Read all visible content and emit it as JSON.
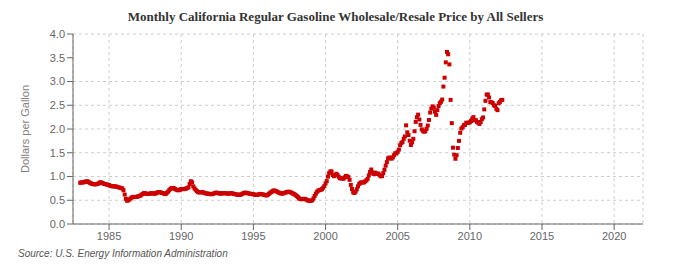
{
  "chart_data": {
    "type": "scatter",
    "title": "Monthly California Regular Gasoline Wholesale/Resale Price by All Sellers",
    "ylabel": "Dollars per Gallon",
    "annotations": [
      "Source: U.S. Energy Information Administration"
    ],
    "color": "#cc0000",
    "marker": "square",
    "grid": true,
    "xlim": [
      1982.5,
      2022.0
    ],
    "ylim": [
      0.0,
      4.0
    ],
    "xticks": [
      1985,
      1990,
      1995,
      2000,
      2005,
      2010,
      2015,
      2020
    ],
    "yticks": [
      {
        "value": 0.0,
        "label": "0.0"
      },
      0.5,
      {
        "value": 1.0,
        "label": "1.0"
      },
      1.5,
      {
        "value": 2.0,
        "label": "2.0"
      },
      2.5,
      {
        "value": 3.0,
        "label": "3.0"
      },
      3.5,
      {
        "value": 4.0,
        "label": "4.0"
      }
    ],
    "x": [
      1983.0,
      1983.083,
      1983.167,
      1983.25,
      1983.333,
      1983.417,
      1983.5,
      1983.583,
      1983.667,
      1983.75,
      1983.833,
      1983.917,
      1984.0,
      1984.083,
      1984.167,
      1984.25,
      1984.333,
      1984.417,
      1984.5,
      1984.583,
      1984.667,
      1984.75,
      1984.833,
      1984.917,
      1985.0,
      1985.083,
      1985.167,
      1985.25,
      1985.333,
      1985.417,
      1985.5,
      1985.583,
      1985.667,
      1985.75,
      1985.833,
      1985.917,
      1986.0,
      1986.083,
      1986.167,
      1986.25,
      1986.333,
      1986.417,
      1986.5,
      1986.583,
      1986.667,
      1986.75,
      1986.833,
      1986.917,
      1987.0,
      1987.083,
      1987.167,
      1987.25,
      1987.333,
      1987.417,
      1987.5,
      1987.583,
      1987.667,
      1987.75,
      1987.833,
      1987.917,
      1988.0,
      1988.083,
      1988.167,
      1988.25,
      1988.333,
      1988.417,
      1988.5,
      1988.583,
      1988.667,
      1988.75,
      1988.833,
      1988.917,
      1989.0,
      1989.083,
      1989.167,
      1989.25,
      1989.333,
      1989.417,
      1989.5,
      1989.583,
      1989.667,
      1989.75,
      1989.833,
      1989.917,
      1990.0,
      1990.083,
      1990.167,
      1990.25,
      1990.333,
      1990.417,
      1990.5,
      1990.583,
      1990.667,
      1990.75,
      1990.833,
      1990.917,
      1991.0,
      1991.083,
      1991.167,
      1991.25,
      1991.333,
      1991.417,
      1991.5,
      1991.583,
      1991.667,
      1991.75,
      1991.833,
      1991.917,
      1992.0,
      1992.083,
      1992.167,
      1992.25,
      1992.333,
      1992.417,
      1992.5,
      1992.583,
      1992.667,
      1992.75,
      1992.833,
      1992.917,
      1993.0,
      1993.083,
      1993.167,
      1993.25,
      1993.333,
      1993.417,
      1993.5,
      1993.583,
      1993.667,
      1993.75,
      1993.833,
      1993.917,
      1994.0,
      1994.083,
      1994.167,
      1994.25,
      1994.333,
      1994.417,
      1994.5,
      1994.583,
      1994.667,
      1994.75,
      1994.833,
      1994.917,
      1995.0,
      1995.083,
      1995.167,
      1995.25,
      1995.333,
      1995.417,
      1995.5,
      1995.583,
      1995.667,
      1995.75,
      1995.833,
      1995.917,
      1996.0,
      1996.083,
      1996.167,
      1996.25,
      1996.333,
      1996.417,
      1996.5,
      1996.583,
      1996.667,
      1996.75,
      1996.833,
      1996.917,
      1997.0,
      1997.083,
      1997.167,
      1997.25,
      1997.333,
      1997.417,
      1997.5,
      1997.583,
      1997.667,
      1997.75,
      1997.833,
      1997.917,
      1998.0,
      1998.083,
      1998.167,
      1998.25,
      1998.333,
      1998.417,
      1998.5,
      1998.583,
      1998.667,
      1998.75,
      1998.833,
      1998.917,
      1999.0,
      1999.083,
      1999.167,
      1999.25,
      1999.333,
      1999.417,
      1999.5,
      1999.583,
      1999.667,
      1999.75,
      1999.833,
      1999.917,
      2000.0,
      2000.083,
      2000.167,
      2000.25,
      2000.333,
      2000.417,
      2000.5,
      2000.583,
      2000.667,
      2000.75,
      2000.833,
      2000.917,
      2001.0,
      2001.083,
      2001.167,
      2001.25,
      2001.333,
      2001.417,
      2001.5,
      2001.583,
      2001.667,
      2001.75,
      2001.833,
      2001.917,
      2002.0,
      2002.083,
      2002.167,
      2002.25,
      2002.333,
      2002.417,
      2002.5,
      2002.583,
      2002.667,
      2002.75,
      2002.833,
      2002.917,
      2003.0,
      2003.083,
      2003.167,
      2003.25,
      2003.333,
      2003.417,
      2003.5,
      2003.583,
      2003.667,
      2003.75,
      2003.833,
      2003.917,
      2004.0,
      2004.083,
      2004.167,
      2004.25,
      2004.333,
      2004.417,
      2004.5,
      2004.583,
      2004.667,
      2004.75,
      2004.833,
      2004.917,
      2005.0,
      2005.083,
      2005.167,
      2005.25,
      2005.333,
      2005.417,
      2005.5,
      2005.583,
      2005.667,
      2005.75,
      2005.833,
      2005.917,
      2006.0,
      2006.083,
      2006.167,
      2006.25,
      2006.333,
      2006.417,
      2006.5,
      2006.583,
      2006.667,
      2006.75,
      2006.833,
      2006.917,
      2007.0,
      2007.083,
      2007.167,
      2007.25,
      2007.333,
      2007.417,
      2007.5,
      2007.583,
      2007.667,
      2007.75,
      2007.833,
      2007.917,
      2008.0,
      2008.083,
      2008.167,
      2008.25,
      2008.333,
      2008.417,
      2008.5,
      2008.583,
      2008.667,
      2008.75,
      2008.833,
      2008.917,
      2009.0,
      2009.083,
      2009.167,
      2009.25,
      2009.333,
      2009.417,
      2009.5,
      2009.583,
      2009.667,
      2009.75,
      2009.833,
      2009.917,
      2010.0,
      2010.083,
      2010.167,
      2010.25,
      2010.333,
      2010.417,
      2010.5,
      2010.583,
      2010.667,
      2010.75,
      2010.833,
      2010.917,
      2011.0,
      2011.083,
      2011.167,
      2011.25,
      2011.333,
      2011.417,
      2011.5,
      2011.583,
      2011.667,
      2011.75,
      2011.833,
      2011.917,
      2012.0,
      2012.083,
      2012.167,
      2012.25
    ],
    "values": [
      0.867,
      0.877,
      0.873,
      0.88,
      0.89,
      0.893,
      0.9,
      0.883,
      0.867,
      0.857,
      0.84,
      0.843,
      0.833,
      0.837,
      0.843,
      0.85,
      0.87,
      0.88,
      0.867,
      0.857,
      0.843,
      0.84,
      0.83,
      0.827,
      0.82,
      0.803,
      0.797,
      0.793,
      0.793,
      0.793,
      0.787,
      0.78,
      0.773,
      0.763,
      0.757,
      0.75,
      0.71,
      0.62,
      0.53,
      0.49,
      0.5,
      0.52,
      0.54,
      0.56,
      0.57,
      0.57,
      0.567,
      0.57,
      0.58,
      0.59,
      0.597,
      0.617,
      0.633,
      0.65,
      0.647,
      0.637,
      0.63,
      0.633,
      0.64,
      0.65,
      0.647,
      0.64,
      0.637,
      0.647,
      0.66,
      0.673,
      0.673,
      0.663,
      0.653,
      0.647,
      0.637,
      0.63,
      0.657,
      0.68,
      0.71,
      0.737,
      0.757,
      0.76,
      0.75,
      0.737,
      0.72,
      0.71,
      0.713,
      0.723,
      0.733,
      0.737,
      0.733,
      0.737,
      0.747,
      0.757,
      0.77,
      0.843,
      0.9,
      0.877,
      0.793,
      0.75,
      0.72,
      0.693,
      0.673,
      0.663,
      0.667,
      0.673,
      0.667,
      0.657,
      0.647,
      0.643,
      0.637,
      0.637,
      0.63,
      0.627,
      0.63,
      0.64,
      0.653,
      0.66,
      0.657,
      0.647,
      0.643,
      0.64,
      0.643,
      0.65,
      0.65,
      0.647,
      0.64,
      0.637,
      0.643,
      0.65,
      0.647,
      0.64,
      0.633,
      0.627,
      0.62,
      0.617,
      0.613,
      0.617,
      0.623,
      0.637,
      0.653,
      0.66,
      0.657,
      0.65,
      0.643,
      0.64,
      0.633,
      0.63,
      0.627,
      0.62,
      0.613,
      0.61,
      0.617,
      0.63,
      0.633,
      0.627,
      0.62,
      0.613,
      0.607,
      0.6,
      0.617,
      0.637,
      0.657,
      0.673,
      0.693,
      0.707,
      0.7,
      0.69,
      0.677,
      0.663,
      0.65,
      0.643,
      0.64,
      0.647,
      0.657,
      0.663,
      0.673,
      0.68,
      0.677,
      0.667,
      0.653,
      0.64,
      0.627,
      0.613,
      0.59,
      0.567,
      0.54,
      0.527,
      0.52,
      0.527,
      0.53,
      0.527,
      0.513,
      0.5,
      0.49,
      0.487,
      0.49,
      0.5,
      0.54,
      0.593,
      0.64,
      0.68,
      0.703,
      0.713,
      0.72,
      0.733,
      0.763,
      0.797,
      0.853,
      0.903,
      0.997,
      1.07,
      1.107,
      1.107,
      1.033,
      1.007,
      1.03,
      1.057,
      1.03,
      0.993,
      0.963,
      0.96,
      0.96,
      0.953,
      0.983,
      1.013,
      1.003,
      0.987,
      0.93,
      0.823,
      0.737,
      0.667,
      0.653,
      0.68,
      0.73,
      0.793,
      0.843,
      0.87,
      0.877,
      0.873,
      0.877,
      0.897,
      0.92,
      0.95,
      1.023,
      1.093,
      1.147,
      1.08,
      1.053,
      1.083,
      1.063,
      1.053,
      1.063,
      1.027,
      1.003,
      1.01,
      1.07,
      1.143,
      1.227,
      1.303,
      1.38,
      1.4,
      1.383,
      1.377,
      1.403,
      1.45,
      1.49,
      1.487,
      1.52,
      1.567,
      1.657,
      1.7,
      1.727,
      1.793,
      1.843,
      2.077,
      1.93,
      1.873,
      1.753,
      1.663,
      1.72,
      1.793,
      1.953,
      2.15,
      2.247,
      2.303,
      2.2,
      2.087,
      1.993,
      1.963,
      1.943,
      1.953,
      2.003,
      2.073,
      2.19,
      2.347,
      2.43,
      2.477,
      2.447,
      2.363,
      2.297,
      2.397,
      2.483,
      2.543,
      2.573,
      2.62,
      2.893,
      3.08,
      3.403,
      3.623,
      3.573,
      3.36,
      2.613,
      2.123,
      1.607,
      1.46,
      1.373,
      1.447,
      1.6,
      1.75,
      1.92,
      2.01,
      2.037,
      2.08,
      2.087,
      2.133,
      2.127,
      2.13,
      2.143,
      2.167,
      2.22,
      2.25,
      2.183,
      2.187,
      2.147,
      2.133,
      2.107,
      2.147,
      2.207,
      2.243,
      2.413,
      2.593,
      2.723,
      2.727,
      2.663,
      2.567,
      2.563,
      2.547,
      2.5,
      2.487,
      2.427,
      2.397,
      2.543,
      2.57,
      2.607,
      2.613
    ]
  }
}
